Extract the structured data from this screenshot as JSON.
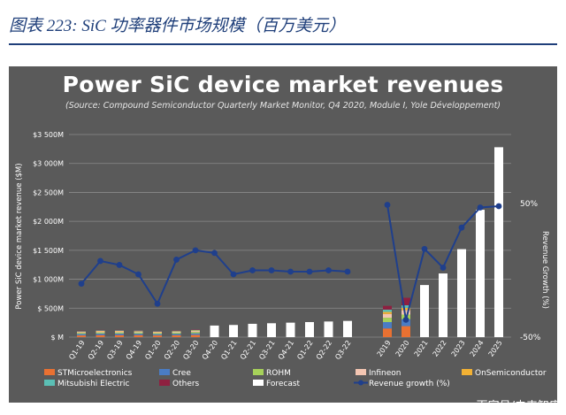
{
  "figure_caption": "图表 223:  SiC 功率器件市场规模（百万美元）",
  "watermark": "百家号/未来智库",
  "chart_data": {
    "type": "bar",
    "title": "Power SiC device market revenues",
    "subtitle": "(Source: Compound Semiconductor Quarterly Market Monitor, Q4 2020, Module I, Yole Développement)",
    "ylabel": "Power SiC device market revenue ($M)",
    "y2label": "Revenue Growth (%)",
    "ylim": [
      0,
      3500
    ],
    "y_ticks": [
      0,
      500,
      1000,
      1500,
      2000,
      2500,
      3000,
      3500
    ],
    "y_tick_labels": [
      "$ M",
      "$ 500M",
      "$1 000M",
      "$1 500M",
      "$2 000M",
      "$2 500M",
      "$3 000M",
      "$3 500M"
    ],
    "y2_ticks": [
      50,
      -50
    ],
    "y2_tick_labels": [
      "50%",
      "-50%"
    ],
    "grid": true,
    "legend_position": "bottom",
    "colors": {
      "panel_background": "#5a5a5a",
      "STMicroelectronics": "#e97132",
      "Cree": "#4a7cc4",
      "ROHM": "#a6d15a",
      "Infineon": "#f4c6b2",
      "OnSemiconductor": "#f2b134",
      "Mitsubishi Electric": "#5bbfb5",
      "Others": "#8e2040",
      "Forecast": "#ffffff",
      "Revenue growth": "#1f3f8c"
    },
    "quarterly": {
      "categories": [
        "Q1-19",
        "Q2-19",
        "Q3-19",
        "Q4-19",
        "Q1-20",
        "Q2-20",
        "Q3-20",
        "Q4-20",
        "Q1-21",
        "Q2-21",
        "Q3-21",
        "Q4-21",
        "Q1-22",
        "Q2-22",
        "Q3-22"
      ],
      "forecast_from_index": 7,
      "series": [
        {
          "name": "STMicroelectronics",
          "values": [
            30,
            35,
            35,
            35,
            30,
            33,
            38,
            null,
            null,
            null,
            null,
            null,
            null,
            null,
            null
          ]
        },
        {
          "name": "Cree",
          "values": [
            25,
            27,
            27,
            25,
            22,
            25,
            28,
            null,
            null,
            null,
            null,
            null,
            null,
            null,
            null
          ]
        },
        {
          "name": "ROHM",
          "values": [
            18,
            20,
            20,
            20,
            18,
            20,
            22,
            null,
            null,
            null,
            null,
            null,
            null,
            null,
            null
          ]
        },
        {
          "name": "Infineon",
          "values": [
            15,
            17,
            17,
            16,
            15,
            16,
            18,
            null,
            null,
            null,
            null,
            null,
            null,
            null,
            null
          ]
        },
        {
          "name": "OnSemiconductor",
          "values": [
            7,
            8,
            8,
            8,
            7,
            8,
            9,
            null,
            null,
            null,
            null,
            null,
            null,
            null,
            null
          ]
        },
        {
          "name": "Mitsubishi Electric",
          "values": [
            10,
            11,
            11,
            11,
            10,
            11,
            12,
            null,
            null,
            null,
            null,
            null,
            null,
            null,
            null
          ]
        },
        {
          "name": "Others",
          "values": [
            5,
            6,
            6,
            6,
            5,
            6,
            7,
            null,
            null,
            null,
            null,
            null,
            null,
            null,
            null
          ]
        },
        {
          "name": "Forecast",
          "values": [
            null,
            null,
            null,
            null,
            null,
            null,
            null,
            200,
            210,
            230,
            240,
            250,
            260,
            270,
            280
          ]
        }
      ],
      "revenue_growth": [
        -10,
        7,
        4,
        -3,
        -25,
        8,
        15,
        13,
        -3,
        0,
        0,
        -1,
        -1,
        0,
        -1
      ]
    },
    "annual": {
      "categories": [
        "2019",
        "2020",
        "2021",
        "2022",
        "2023",
        "2024",
        "2025"
      ],
      "forecast_from_index": 2,
      "series": [
        {
          "name": "STMicroelectronics",
          "values": [
            150,
            190,
            null,
            null,
            null,
            null,
            null
          ]
        },
        {
          "name": "Cree",
          "values": [
            110,
            120,
            null,
            null,
            null,
            null,
            null
          ]
        },
        {
          "name": "ROHM",
          "values": [
            75,
            80,
            null,
            null,
            null,
            null,
            null
          ]
        },
        {
          "name": "Infineon",
          "values": [
            65,
            75,
            null,
            null,
            null,
            null,
            null
          ]
        },
        {
          "name": "OnSemiconductor",
          "values": [
            35,
            40,
            null,
            null,
            null,
            null,
            null
          ]
        },
        {
          "name": "Mitsubishi Electric",
          "values": [
            40,
            45,
            null,
            null,
            null,
            null,
            null
          ]
        },
        {
          "name": "Others",
          "values": [
            65,
            130,
            null,
            null,
            null,
            null,
            null
          ]
        },
        {
          "name": "Forecast",
          "values": [
            null,
            null,
            900,
            1100,
            1520,
            2200,
            3280
          ]
        }
      ],
      "revenue_growth": [
        49,
        -37,
        16,
        2,
        32,
        47,
        48
      ]
    }
  }
}
